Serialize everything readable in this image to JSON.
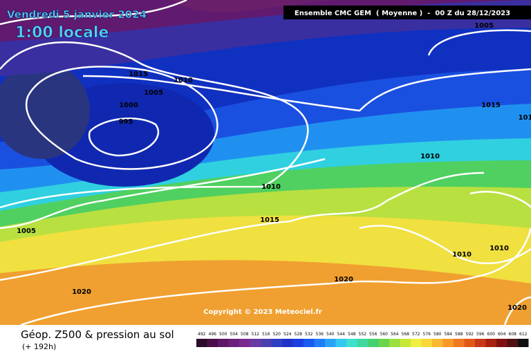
{
  "header": {
    "date": "Vendredi 5 janvier 2024",
    "time": "1:00 locale",
    "model": "Ensemble CMC GEM  ( Moyenne )  -  00 Z du 28/12/2023"
  },
  "isobar_labels": [
    "1005",
    "1015",
    "1010",
    "1005",
    "1000",
    "995",
    "1015",
    "101",
    "1010",
    "1010",
    "1015",
    "1005",
    "1020",
    "1020",
    "1010",
    "1010",
    "1020"
  ],
  "copyright": "Copyright © 2023 Meteociel.fr",
  "footer": {
    "title": "Géop. Z500 & pression au sol",
    "lead": "(+ 192h)"
  },
  "scale": {
    "values": [
      492,
      496,
      500,
      504,
      508,
      512,
      516,
      520,
      524,
      528,
      532,
      536,
      540,
      544,
      548,
      552,
      556,
      560,
      564,
      568,
      572,
      576,
      580,
      584,
      588,
      592,
      596,
      600,
      604,
      608,
      612
    ],
    "colors": [
      "#2d0b2d",
      "#4a0f4a",
      "#5e1766",
      "#6c1f7c",
      "#7a2a8f",
      "#6a3aa3",
      "#4b3fb0",
      "#2f3ec0",
      "#1f33c8",
      "#1a3fe0",
      "#1a5af0",
      "#1f7ef8",
      "#29a3f8",
      "#33c8f0",
      "#3ee0d0",
      "#3fd8a0",
      "#46d070",
      "#6ad44a",
      "#9ce040",
      "#c8e838",
      "#f0f040",
      "#f8d838",
      "#f8b830",
      "#f89828",
      "#f07820",
      "#e05818",
      "#c83818",
      "#a82010",
      "#801010",
      "#501010",
      "#101010"
    ]
  }
}
